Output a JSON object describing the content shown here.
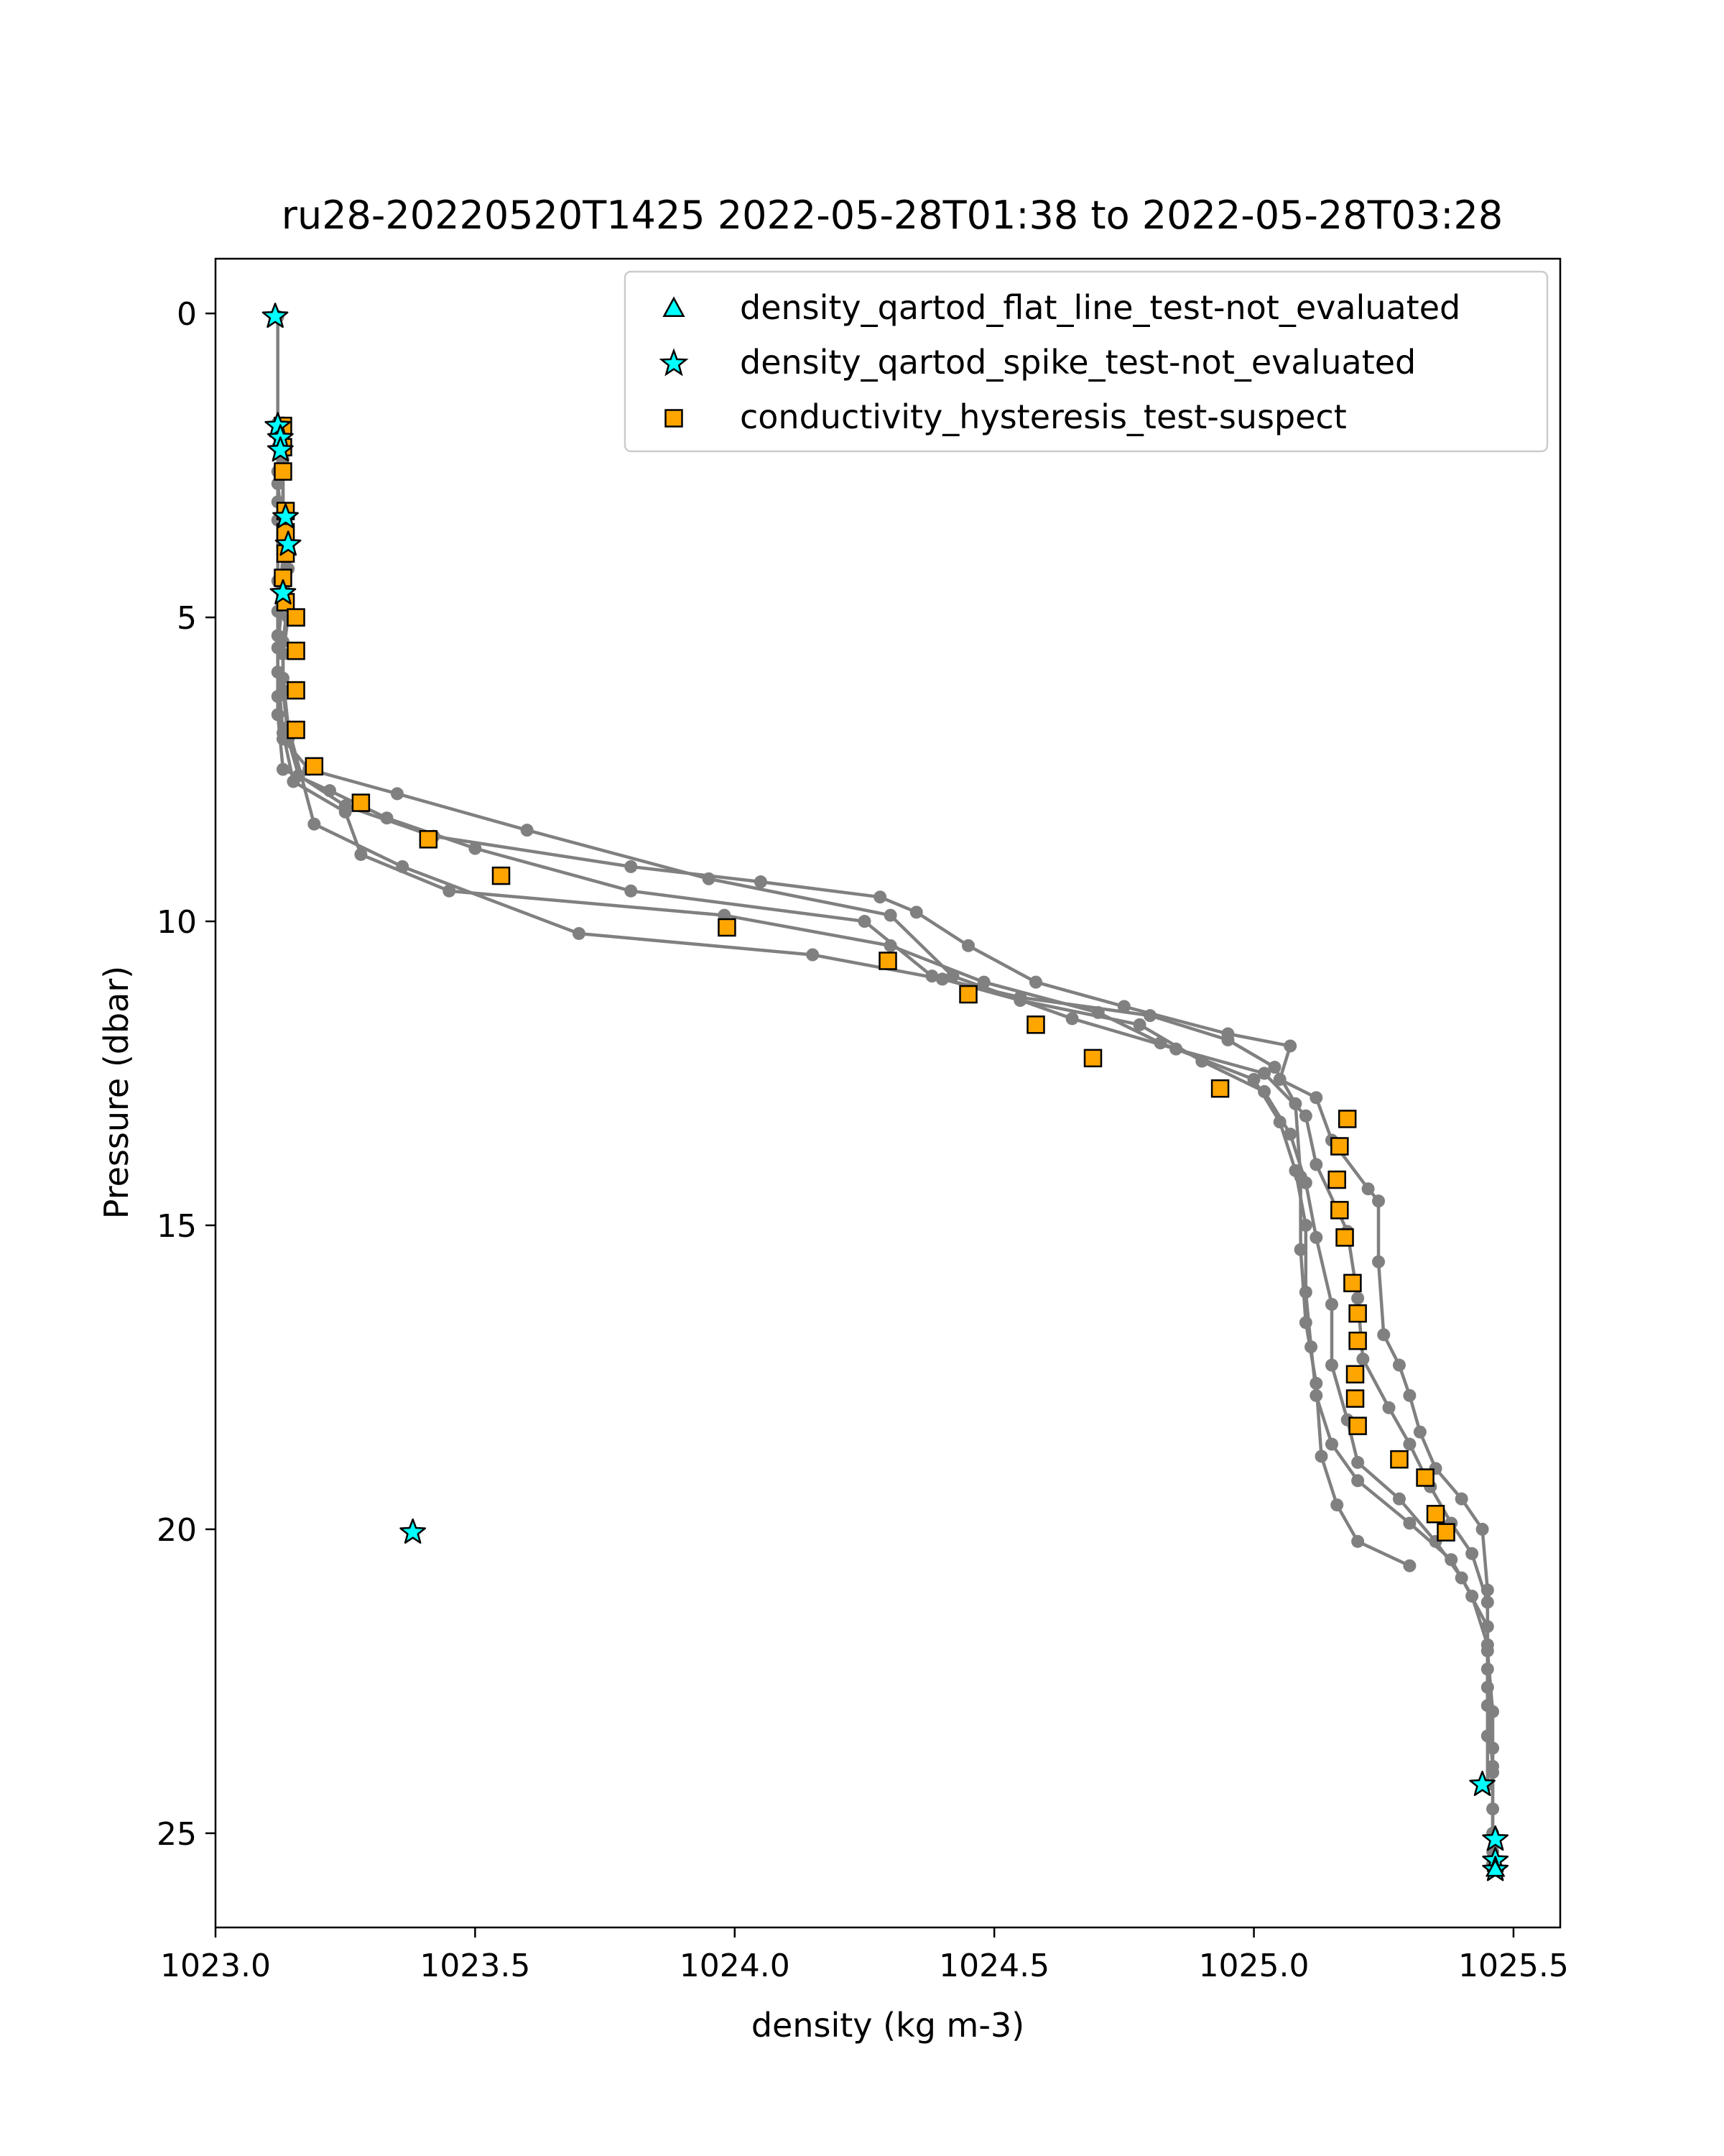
{
  "chart_data": {
    "type": "scatter",
    "title": "ru28-20220520T1425 2022-05-28T01:38 to 2022-05-28T03:28",
    "xlabel": "density (kg m-3)",
    "ylabel": "Pressure (dbar)",
    "xlim": [
      1023.0,
      1025.59
    ],
    "ylim": [
      26.55,
      -0.9
    ],
    "y_inverted": true,
    "x_ticks": [
      "1023.0",
      "1023.5",
      "1024.0",
      "1024.5",
      "1025.0",
      "1025.5"
    ],
    "y_ticks": [
      "0",
      "5",
      "10",
      "15",
      "20",
      "25"
    ],
    "x_tick_values": [
      1023.0,
      1023.5,
      1024.0,
      1024.5,
      1025.0,
      1025.5
    ],
    "y_tick_values": [
      0,
      5,
      10,
      15,
      20,
      25
    ],
    "grid": false,
    "legend_position": "top-right",
    "colors": {
      "profile_line": "#808080",
      "flag_fill": "#00ffff",
      "suspect_fill": "#ffa500",
      "edge": "#000000"
    },
    "profiles": [
      {
        "points": [
          [
            1023.12,
            0.05
          ],
          [
            1023.12,
            1.8
          ],
          [
            1023.13,
            2.5
          ],
          [
            1023.13,
            3.3
          ],
          [
            1023.14,
            4.2
          ],
          [
            1023.14,
            5.0
          ],
          [
            1023.13,
            5.6
          ],
          [
            1023.13,
            6.2
          ],
          [
            1023.14,
            7.0
          ],
          [
            1023.16,
            7.6
          ],
          [
            1023.25,
            8.1
          ],
          [
            1023.42,
            8.6
          ],
          [
            1023.8,
            9.1
          ],
          [
            1024.05,
            9.35
          ],
          [
            1024.28,
            9.6
          ],
          [
            1024.35,
            9.85
          ],
          [
            1024.45,
            10.4
          ],
          [
            1024.58,
            11.0
          ],
          [
            1024.75,
            11.4
          ],
          [
            1024.95,
            11.85
          ],
          [
            1025.07,
            12.05
          ],
          [
            1025.05,
            12.6
          ],
          [
            1025.12,
            12.9
          ],
          [
            1025.15,
            13.6
          ],
          [
            1025.22,
            14.4
          ],
          [
            1025.24,
            14.6
          ],
          [
            1025.24,
            15.6
          ],
          [
            1025.25,
            16.8
          ],
          [
            1025.28,
            17.3
          ],
          [
            1025.3,
            17.8
          ],
          [
            1025.32,
            18.4
          ],
          [
            1025.35,
            19.0
          ],
          [
            1025.4,
            19.5
          ],
          [
            1025.44,
            20.0
          ],
          [
            1025.45,
            21.0
          ],
          [
            1025.45,
            22.0
          ],
          [
            1025.46,
            23.0
          ],
          [
            1025.46,
            24.0
          ],
          [
            1025.46,
            25.0
          ],
          [
            1025.46,
            25.5
          ]
        ]
      },
      {
        "points": [
          [
            1023.12,
            1.9
          ],
          [
            1023.12,
            2.6
          ],
          [
            1023.12,
            3.4
          ],
          [
            1023.12,
            4.4
          ],
          [
            1023.12,
            5.3
          ],
          [
            1023.12,
            6.3
          ],
          [
            1023.13,
            7.0
          ],
          [
            1023.18,
            7.5
          ],
          [
            1023.35,
            7.9
          ],
          [
            1023.6,
            8.5
          ],
          [
            1023.95,
            9.3
          ],
          [
            1024.3,
            9.9
          ],
          [
            1024.42,
            10.9
          ],
          [
            1024.65,
            11.6
          ],
          [
            1024.85,
            12.1
          ],
          [
            1025.02,
            12.5
          ],
          [
            1025.1,
            13.2
          ],
          [
            1025.12,
            14.0
          ],
          [
            1025.18,
            15.1
          ],
          [
            1025.2,
            16.2
          ],
          [
            1025.21,
            17.2
          ],
          [
            1025.26,
            18.0
          ],
          [
            1025.3,
            18.6
          ],
          [
            1025.34,
            19.3
          ],
          [
            1025.38,
            19.9
          ],
          [
            1025.42,
            20.4
          ],
          [
            1025.45,
            21.2
          ],
          [
            1025.45,
            22.3
          ],
          [
            1025.45,
            23.4
          ],
          [
            1025.45,
            24.2
          ]
        ]
      },
      {
        "points": [
          [
            1023.12,
            2.0
          ],
          [
            1023.12,
            2.8
          ],
          [
            1023.13,
            3.6
          ],
          [
            1023.13,
            4.6
          ],
          [
            1023.12,
            5.5
          ],
          [
            1023.12,
            6.6
          ],
          [
            1023.13,
            7.5
          ],
          [
            1023.22,
            7.85
          ],
          [
            1023.33,
            8.3
          ],
          [
            1023.5,
            8.8
          ],
          [
            1023.8,
            9.5
          ],
          [
            1024.25,
            10.0
          ],
          [
            1024.38,
            10.9
          ],
          [
            1024.55,
            11.3
          ],
          [
            1024.78,
            11.7
          ],
          [
            1024.9,
            12.3
          ],
          [
            1025.02,
            12.8
          ],
          [
            1025.07,
            13.5
          ],
          [
            1025.1,
            14.3
          ],
          [
            1025.12,
            15.2
          ],
          [
            1025.15,
            16.3
          ],
          [
            1025.15,
            17.3
          ],
          [
            1025.18,
            18.2
          ],
          [
            1025.2,
            18.9
          ],
          [
            1025.28,
            19.5
          ],
          [
            1025.35,
            20.2
          ],
          [
            1025.4,
            20.8
          ],
          [
            1025.45,
            21.6
          ],
          [
            1025.45,
            22.6
          ],
          [
            1025.46,
            23.6
          ],
          [
            1025.46,
            24.6
          ],
          [
            1025.46,
            25.3
          ]
        ]
      },
      {
        "points": [
          [
            1023.12,
            2.2
          ],
          [
            1023.12,
            3.1
          ],
          [
            1023.13,
            4.0
          ],
          [
            1023.12,
            4.9
          ],
          [
            1023.12,
            5.9
          ],
          [
            1023.13,
            6.9
          ],
          [
            1023.15,
            7.7
          ],
          [
            1023.25,
            8.2
          ],
          [
            1023.28,
            8.9
          ],
          [
            1023.45,
            9.5
          ],
          [
            1023.98,
            9.9
          ],
          [
            1024.3,
            10.4
          ],
          [
            1024.48,
            11.0
          ],
          [
            1024.7,
            11.5
          ],
          [
            1024.82,
            12.0
          ],
          [
            1025.0,
            12.6
          ],
          [
            1025.05,
            13.3
          ],
          [
            1025.08,
            14.1
          ],
          [
            1025.1,
            15.0
          ],
          [
            1025.1,
            16.1
          ],
          [
            1025.11,
            17.0
          ],
          [
            1025.12,
            17.8
          ],
          [
            1025.15,
            18.6
          ],
          [
            1025.2,
            19.2
          ],
          [
            1025.3,
            19.9
          ],
          [
            1025.38,
            20.5
          ],
          [
            1025.42,
            21.1
          ],
          [
            1025.45,
            21.9
          ],
          [
            1025.45,
            22.9
          ],
          [
            1025.46,
            23.9
          ]
        ]
      },
      {
        "points": [
          [
            1023.13,
            1.8
          ],
          [
            1023.13,
            2.4
          ],
          [
            1023.13,
            3.2
          ],
          [
            1023.13,
            3.9
          ],
          [
            1023.14,
            4.7
          ],
          [
            1023.13,
            5.4
          ],
          [
            1023.13,
            6.0
          ],
          [
            1023.14,
            6.8
          ],
          [
            1023.19,
            8.4
          ],
          [
            1023.36,
            9.1
          ],
          [
            1023.7,
            10.2
          ],
          [
            1024.15,
            10.55
          ],
          [
            1024.4,
            10.95
          ],
          [
            1024.55,
            11.25
          ],
          [
            1024.8,
            11.55
          ],
          [
            1024.95,
            11.95
          ],
          [
            1025.04,
            12.4
          ],
          [
            1025.08,
            13.0
          ],
          [
            1025.09,
            14.2
          ],
          [
            1025.09,
            15.4
          ],
          [
            1025.1,
            16.6
          ],
          [
            1025.12,
            17.6
          ],
          [
            1025.13,
            18.8
          ],
          [
            1025.16,
            19.6
          ],
          [
            1025.2,
            20.2
          ],
          [
            1025.3,
            20.6
          ]
        ]
      }
    ],
    "suspect_points": [
      [
        1023.13,
        1.85
      ],
      [
        1023.13,
        2.2
      ],
      [
        1023.13,
        2.6
      ],
      [
        1023.135,
        3.25
      ],
      [
        1023.135,
        3.6
      ],
      [
        1023.135,
        3.95
      ],
      [
        1023.13,
        4.35
      ],
      [
        1023.135,
        4.75
      ],
      [
        1023.155,
        5.0
      ],
      [
        1023.155,
        5.55
      ],
      [
        1023.155,
        6.2
      ],
      [
        1023.155,
        6.85
      ],
      [
        1023.19,
        7.45
      ],
      [
        1023.28,
        8.05
      ],
      [
        1023.41,
        8.65
      ],
      [
        1023.55,
        9.25
      ],
      [
        1023.985,
        10.1
      ],
      [
        1024.295,
        10.65
      ],
      [
        1024.45,
        11.2
      ],
      [
        1024.58,
        11.7
      ],
      [
        1024.69,
        12.25
      ],
      [
        1024.935,
        12.75
      ],
      [
        1025.18,
        13.25
      ],
      [
        1025.165,
        13.7
      ],
      [
        1025.16,
        14.25
      ],
      [
        1025.165,
        14.75
      ],
      [
        1025.175,
        15.2
      ],
      [
        1025.19,
        15.95
      ],
      [
        1025.2,
        16.45
      ],
      [
        1025.2,
        16.9
      ],
      [
        1025.195,
        17.45
      ],
      [
        1025.195,
        17.85
      ],
      [
        1025.2,
        18.3
      ],
      [
        1025.28,
        18.85
      ],
      [
        1025.33,
        19.15
      ],
      [
        1025.35,
        19.75
      ],
      [
        1025.37,
        20.05
      ]
    ],
    "spike_points": [
      [
        1023.115,
        0.05
      ],
      [
        1023.12,
        1.85
      ],
      [
        1023.125,
        2.05
      ],
      [
        1023.125,
        2.25
      ],
      [
        1023.135,
        3.35
      ],
      [
        1023.14,
        3.8
      ],
      [
        1023.13,
        4.6
      ],
      [
        1023.38,
        20.05
      ],
      [
        1025.44,
        24.2
      ],
      [
        1025.465,
        25.1
      ],
      [
        1025.465,
        25.45
      ],
      [
        1025.465,
        25.6
      ]
    ],
    "flat_line_points": [
      [
        1025.465,
        25.6
      ]
    ],
    "legend": [
      {
        "label": "density_qartod_flat_line_test-not_evaluated",
        "marker": "triangle",
        "color": "#00ffff"
      },
      {
        "label": "density_qartod_spike_test-not_evaluated",
        "marker": "star",
        "color": "#00ffff"
      },
      {
        "label": "conductivity_hysteresis_test-suspect",
        "marker": "square",
        "color": "#ffa500"
      }
    ]
  }
}
